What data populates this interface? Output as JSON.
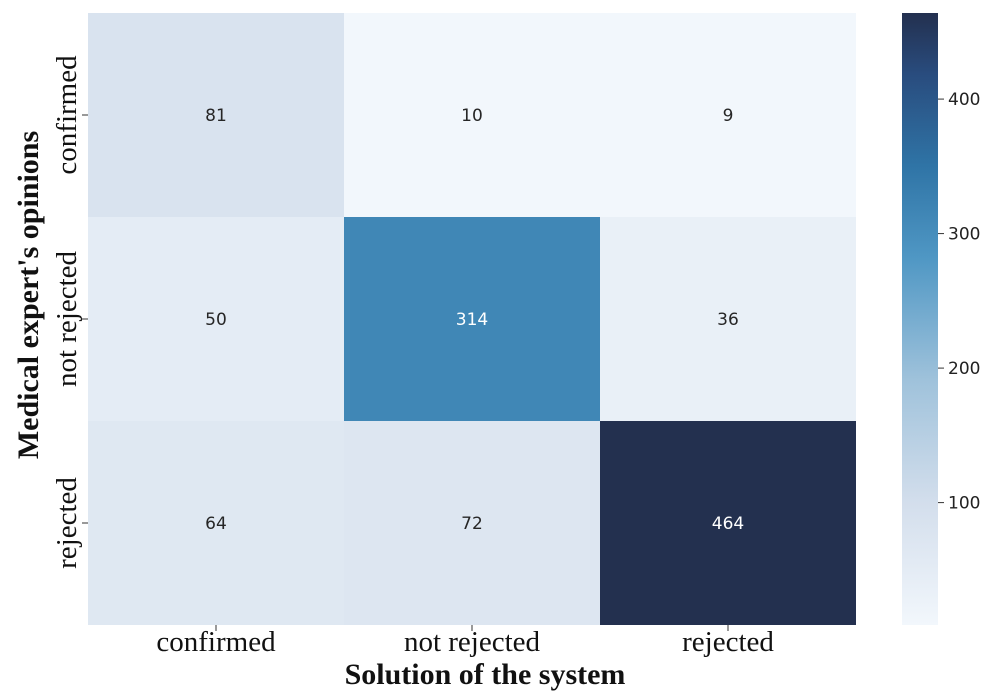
{
  "chart_data": {
    "type": "heatmap",
    "title": "",
    "xlabel": "Solution of the system",
    "ylabel": "Medical expert's opinions",
    "x_categories": [
      "confirmed",
      "not rejected",
      "rejected"
    ],
    "y_categories": [
      "confirmed",
      "not rejected",
      "rejected"
    ],
    "values": [
      [
        81,
        10,
        9
      ],
      [
        50,
        314,
        36
      ],
      [
        64,
        72,
        464
      ]
    ],
    "colorbar": {
      "ticks": [
        100,
        200,
        300,
        400
      ],
      "vmin": 9,
      "vmax": 464,
      "colormap": "Blues"
    },
    "colors": {
      "low": "#f2f7fc",
      "mid": "#3a86b8",
      "high": "#23304f"
    }
  }
}
